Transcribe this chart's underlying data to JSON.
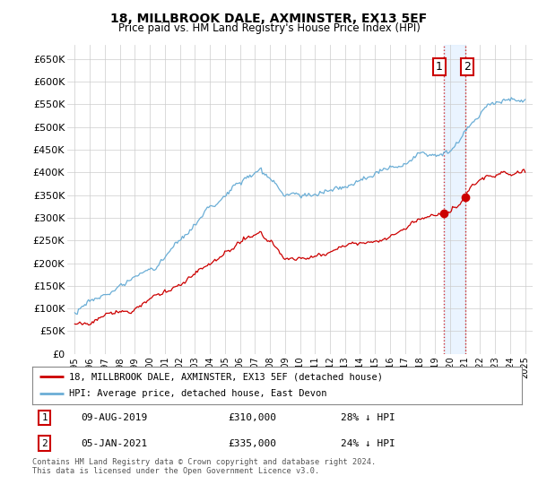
{
  "title": "18, MILLBROOK DALE, AXMINSTER, EX13 5EF",
  "subtitle": "Price paid vs. HM Land Registry's House Price Index (HPI)",
  "ylabel_ticks": [
    "£0",
    "£50K",
    "£100K",
    "£150K",
    "£200K",
    "£250K",
    "£300K",
    "£350K",
    "£400K",
    "£450K",
    "£500K",
    "£550K",
    "£600K",
    "£650K"
  ],
  "ytick_values": [
    0,
    50000,
    100000,
    150000,
    200000,
    250000,
    300000,
    350000,
    400000,
    450000,
    500000,
    550000,
    600000,
    650000
  ],
  "ylim": [
    0,
    680000
  ],
  "xlim": [
    1994.5,
    2025.5
  ],
  "xticks": [
    1995,
    1996,
    1997,
    1998,
    1999,
    2000,
    2001,
    2002,
    2003,
    2004,
    2005,
    2006,
    2007,
    2008,
    2009,
    2010,
    2011,
    2012,
    2013,
    2014,
    2015,
    2016,
    2017,
    2018,
    2019,
    2020,
    2021,
    2022,
    2023,
    2024,
    2025
  ],
  "hpi_color": "#6baed6",
  "price_color": "#cc0000",
  "legend_label_red": "18, MILLBROOK DALE, AXMINSTER, EX13 5EF (detached house)",
  "legend_label_blue": "HPI: Average price, detached house, East Devon",
  "transaction_1_box": "1",
  "transaction_1_date": "09-AUG-2019",
  "transaction_1_price": "£310,000",
  "transaction_1_hpi": "28% ↓ HPI",
  "transaction_2_box": "2",
  "transaction_2_date": "05-JAN-2021",
  "transaction_2_price": "£335,000",
  "transaction_2_hpi": "24% ↓ HPI",
  "footnote": "Contains HM Land Registry data © Crown copyright and database right 2024.\nThis data is licensed under the Open Government Licence v3.0.",
  "bg_color": "#ffffff",
  "grid_color": "#cccccc",
  "point1_year": 2019.6,
  "point1_val": 310000,
  "point2_year": 2021.0,
  "point2_val": 335000,
  "shade_color": "#ddeeff"
}
